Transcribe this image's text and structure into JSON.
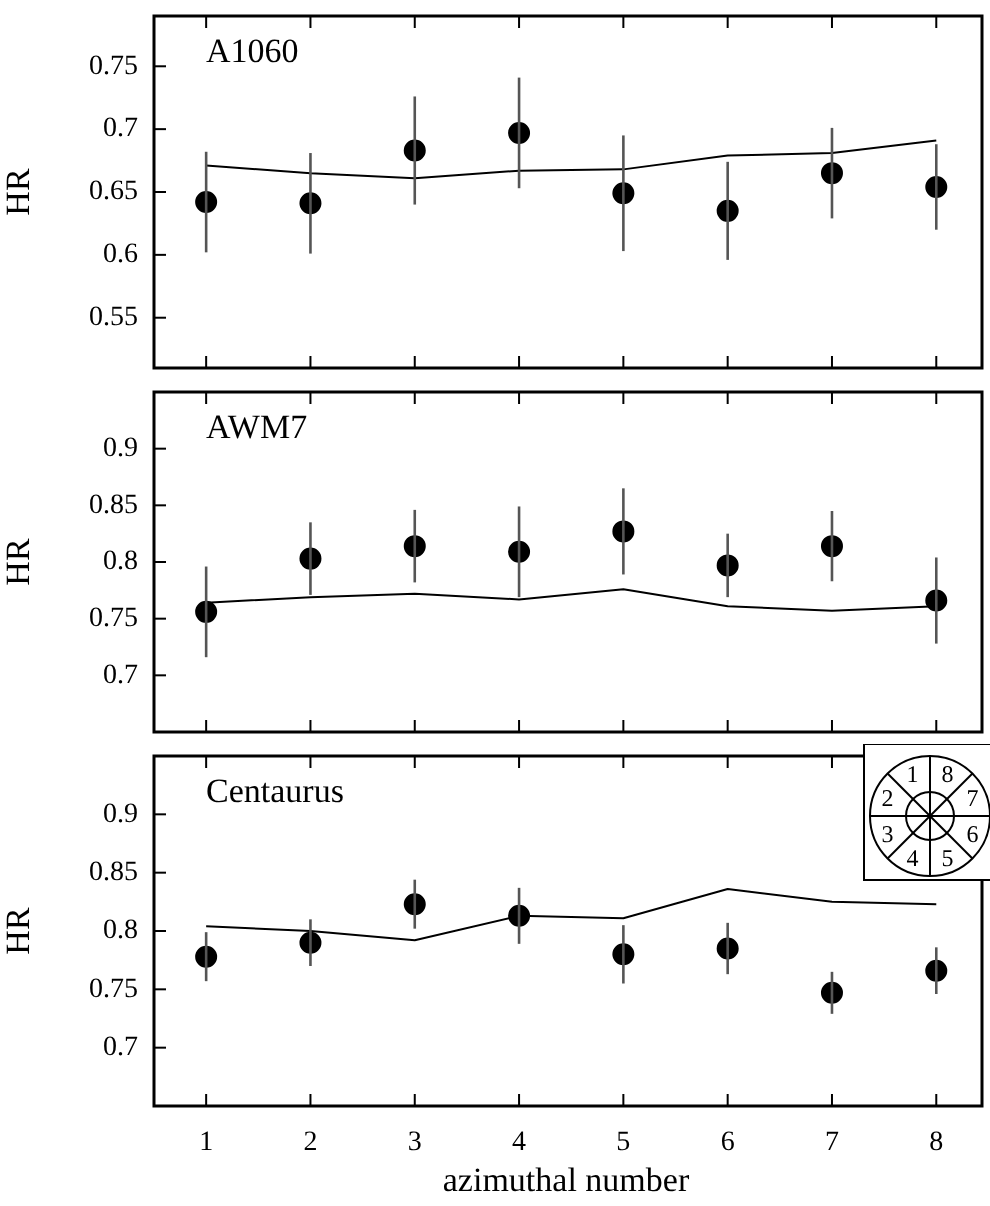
{
  "chart_data": [
    {
      "type": "scatter",
      "title": "A1060",
      "ylabel": "HR",
      "x": [
        1,
        2,
        3,
        4,
        5,
        6,
        7,
        8
      ],
      "xlim": [
        0.5,
        8.4
      ],
      "xticks": [
        1,
        2,
        3,
        4,
        5,
        6,
        7,
        8
      ],
      "ylim": [
        0.51,
        0.79
      ],
      "yticks": [
        0.55,
        0.6,
        0.65,
        0.7,
        0.75
      ],
      "tick_labels": "y",
      "grid": false,
      "legend": false,
      "series": [
        {
          "type": "line",
          "color": "#000000",
          "values": [
            0.671,
            0.665,
            0.661,
            0.667,
            0.668,
            0.679,
            0.681,
            0.691
          ]
        },
        {
          "marker": "circle",
          "color": "#000000",
          "values": [
            0.642,
            0.641,
            0.683,
            0.697,
            0.649,
            0.635,
            0.665,
            0.654
          ],
          "errors": [
            0.04,
            0.04,
            0.043,
            0.044,
            0.046,
            0.039,
            0.036,
            0.034
          ]
        }
      ]
    },
    {
      "type": "scatter",
      "title": "AWM7",
      "ylabel": "HR",
      "x": [
        1,
        2,
        3,
        4,
        5,
        6,
        7,
        8
      ],
      "xlim": [
        0.5,
        8.4
      ],
      "xticks": [
        1,
        2,
        3,
        4,
        5,
        6,
        7,
        8
      ],
      "ylim": [
        0.65,
        0.95
      ],
      "yticks": [
        0.7,
        0.75,
        0.8,
        0.85,
        0.9
      ],
      "tick_labels": "y",
      "grid": false,
      "legend": false,
      "series": [
        {
          "type": "line",
          "color": "#000000",
          "values": [
            0.764,
            0.769,
            0.772,
            0.767,
            0.776,
            0.761,
            0.757,
            0.761
          ]
        },
        {
          "marker": "circle",
          "color": "#000000",
          "values": [
            0.756,
            0.803,
            0.814,
            0.809,
            0.827,
            0.797,
            0.814,
            0.766
          ],
          "errors": [
            0.04,
            0.032,
            0.032,
            0.04,
            0.038,
            0.028,
            0.031,
            0.038
          ]
        }
      ]
    },
    {
      "type": "scatter",
      "title": "Centaurus",
      "ylabel": "HR",
      "xlabel": "azimuthal number",
      "x": [
        1,
        2,
        3,
        4,
        5,
        6,
        7,
        8
      ],
      "xlim": [
        0.5,
        8.4
      ],
      "xticks": [
        1,
        2,
        3,
        4,
        5,
        6,
        7,
        8
      ],
      "ylim": [
        0.65,
        0.95
      ],
      "yticks": [
        0.7,
        0.75,
        0.8,
        0.85,
        0.9
      ],
      "grid": false,
      "legend": false,
      "annotations": [
        "1",
        "2",
        "3",
        "4",
        "5",
        "6",
        "7",
        "8"
      ],
      "series": [
        {
          "type": "line",
          "color": "#000000",
          "values": [
            0.804,
            0.8,
            0.792,
            0.813,
            0.811,
            0.836,
            0.825,
            0.823
          ]
        },
        {
          "marker": "circle",
          "color": "#000000",
          "values": [
            0.778,
            0.79,
            0.823,
            0.813,
            0.78,
            0.785,
            0.747,
            0.766
          ],
          "errors": [
            0.021,
            0.02,
            0.021,
            0.024,
            0.025,
            0.022,
            0.018,
            0.02
          ]
        }
      ]
    }
  ]
}
